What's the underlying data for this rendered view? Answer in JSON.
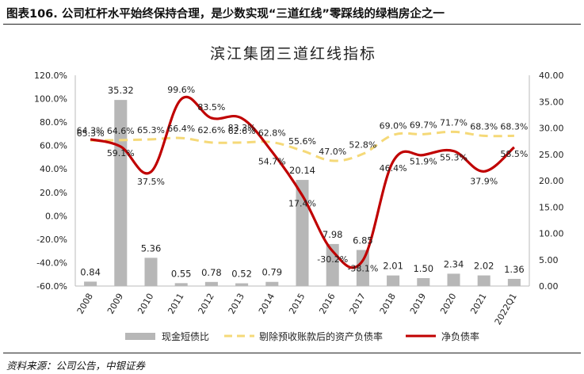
{
  "caption": "图表106. 公司杠杆水平始终保持合理，是少数实现“三道红线”零踩线的绿档房企之一",
  "source": "资料来源：公司公告，中银证券",
  "colors": {
    "bar": "#b7b7b7",
    "adjusted_line": "#f5d978",
    "net_line": "#c00000",
    "axis": "#bbbbbb",
    "text": "#222222"
  },
  "chart_data": {
    "type": "bar+line",
    "title": "滨江集团三道红线指标",
    "categories": [
      "2008",
      "2009",
      "2010",
      "2011",
      "2012",
      "2013",
      "2014",
      "2015",
      "2016",
      "2017",
      "2018",
      "2019",
      "2020",
      "2021",
      "2022Q1"
    ],
    "left_axis": {
      "min": -60,
      "max": 120,
      "step": 20,
      "tick_labels": [
        "120.0%",
        "100.0%",
        "80.0%",
        "60.0%",
        "40.0%",
        "20.0%",
        "0.0%",
        "-20.0%",
        "-40.0%",
        "-60.0%"
      ]
    },
    "right_axis": {
      "min": 0,
      "max": 40,
      "step": 5,
      "tick_labels": [
        "40.00",
        "35.00",
        "30.00",
        "25.00",
        "20.00",
        "15.00",
        "10.00",
        "5.00",
        "0.00"
      ]
    },
    "series": [
      {
        "name": "现金短债比",
        "kind": "bar",
        "axis": "right",
        "values": [
          0.84,
          35.32,
          5.36,
          0.55,
          0.78,
          0.52,
          0.79,
          20.14,
          7.98,
          6.85,
          2.01,
          1.5,
          2.34,
          2.02,
          1.36
        ],
        "labels": [
          "0.84",
          "35.32",
          "5.36",
          "0.55",
          "0.78",
          "0.52",
          "0.79",
          "20.14",
          "7.98",
          "6.85",
          "2.01",
          "1.50",
          "2.34",
          "2.02",
          "1.36"
        ]
      },
      {
        "name": "剔除预收账款后的资产负债率",
        "kind": "line-dashed",
        "axis": "left",
        "values": [
          64.3,
          64.6,
          65.3,
          66.4,
          62.6,
          62.6,
          62.8,
          55.6,
          47.0,
          52.8,
          69.0,
          69.7,
          71.7,
          68.3,
          68.3
        ],
        "labels": [
          "64.3%",
          "64.6%",
          "65.3%",
          "66.4%",
          "62.6%",
          "62.6%",
          "62.8%",
          "55.6%",
          "47.0%",
          "52.8%",
          "69.0%",
          "69.7%",
          "71.7%",
          "68.3%",
          "68.3%"
        ]
      },
      {
        "name": "净负债率",
        "kind": "line-smooth",
        "axis": "left",
        "values": [
          65.3,
          59.1,
          37.5,
          99.6,
          83.5,
          83.3,
          54.7,
          17.4,
          -30.2,
          -38.1,
          46.4,
          51.9,
          55.3,
          37.9,
          58.5
        ],
        "labels": [
          "65.3%",
          "59.1%",
          "37.5%",
          "99.6%",
          "83.5%",
          "83.3%",
          "54.7%",
          "17.4%",
          "-30.2%",
          "-38.1%",
          "46.4%",
          "51.9%",
          "55.3%",
          "37.9%",
          "58.5%"
        ]
      }
    ],
    "legend_position": "bottom"
  }
}
